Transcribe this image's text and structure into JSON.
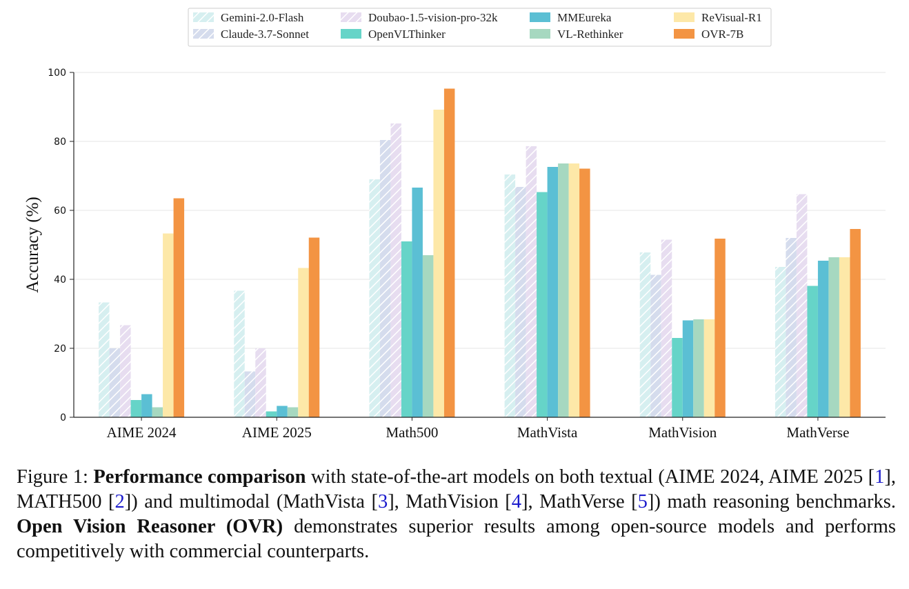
{
  "chart_data": {
    "type": "bar",
    "categories": [
      "AIME 2024",
      "AIME 2025",
      "Math500",
      "MathVista",
      "MathVision",
      "MathVerse"
    ],
    "ylabel": "Accuracy (%)",
    "xlabel": "",
    "ylim": [
      0,
      100
    ],
    "yticks": [
      0,
      20,
      40,
      60,
      80,
      100
    ],
    "grid": true,
    "legend_position": "top-center",
    "series": [
      {
        "name": "Gemini-2.0-Flash",
        "color": "#d6eff0",
        "hatch": true,
        "values": [
          33.3,
          36.7,
          69.0,
          70.4,
          47.8,
          43.6
        ]
      },
      {
        "name": "Claude-3.7-Sonnet",
        "color": "#d5dced",
        "hatch": true,
        "values": [
          20.0,
          13.3,
          80.4,
          66.8,
          41.3,
          52.0
        ]
      },
      {
        "name": "Doubao-1.5-vision-pro-32k",
        "color": "#e7ddf0",
        "hatch": true,
        "values": [
          26.7,
          20.0,
          85.2,
          78.6,
          51.5,
          64.7
        ]
      },
      {
        "name": "OpenVLThinker",
        "color": "#66d4c8",
        "hatch": false,
        "values": [
          5.0,
          1.7,
          51.0,
          65.3,
          23.0,
          38.1
        ]
      },
      {
        "name": "MMEureka",
        "color": "#5bbfd4",
        "hatch": false,
        "values": [
          6.7,
          3.3,
          66.6,
          72.6,
          28.1,
          45.4
        ]
      },
      {
        "name": "VL-Rethinker",
        "color": "#a6d8c0",
        "hatch": false,
        "values": [
          2.9,
          2.9,
          47.0,
          73.6,
          28.4,
          46.4
        ]
      },
      {
        "name": "ReVisual-R1",
        "color": "#fde8a8",
        "hatch": false,
        "values": [
          53.3,
          43.3,
          89.2,
          73.6,
          28.4,
          46.4
        ]
      },
      {
        "name": "OVR-7B",
        "color": "#f39443",
        "hatch": false,
        "values": [
          63.5,
          52.1,
          95.3,
          72.1,
          51.8,
          54.6
        ]
      }
    ]
  },
  "caption": {
    "label": "Figure 1:",
    "bold1": "Performance comparison",
    "text1": " with state-of-the-art models on both textual (AIME 2024, AIME 2025 [",
    "ref1": "1",
    "text2": "], MATH500 [",
    "ref2": "2",
    "text3": "]) and multimodal (MathVista [",
    "ref3": "3",
    "text4": "], MathVision [",
    "ref4": "4",
    "text5": "], MathVerse [",
    "ref5": "5",
    "text6": "]) math reasoning benchmarks.  ",
    "bold2": "Open Vision Reasoner (OVR)",
    "text7": " demonstrates superior results among open-source models and performs competitively with commercial counterparts."
  }
}
